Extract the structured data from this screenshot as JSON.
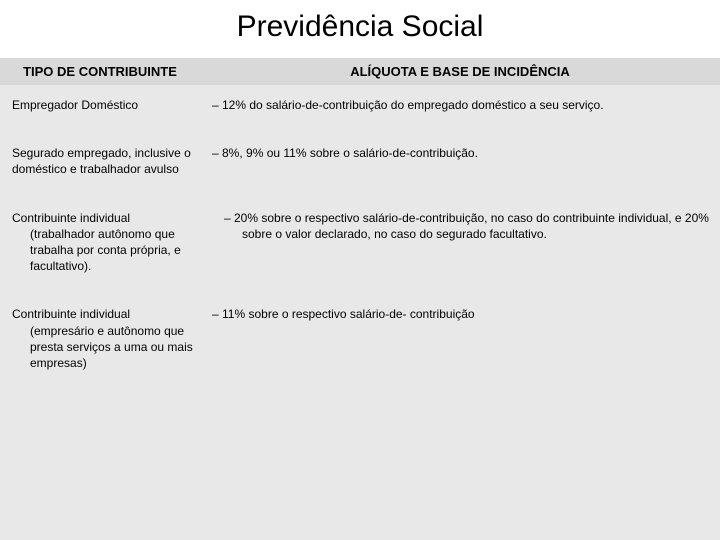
{
  "title": "Previdência Social",
  "columns": {
    "left": "TIPO DE CONTRIBUINTE",
    "right": "ALÍQUOTA E BASE DE INCIDÊNCIA"
  },
  "rows": [
    {
      "left": "Empregador Doméstico",
      "right": "– 12% do salário-de-contribuição do empregado doméstico a seu serviço."
    },
    {
      "left": "Segurado empregado, inclusive o doméstico e trabalhador avulso",
      "right": "– 8%, 9% ou 11% sobre o salário-de-contribuição."
    },
    {
      "left": "Contribuinte individual (trabalhador autônomo que trabalha por conta própria, e facultativo).",
      "right": "– 20% sobre o respectivo salário-de-contribuição, no caso do contribuinte individual, e 20% sobre o valor declarado, no caso do segurado facultativo."
    },
    {
      "left": "Contribuinte individual (empresário e autônomo que presta serviços a uma ou mais empresas)",
      "right": "– 11% sobre o respectivo salário-de- contribuição"
    }
  ],
  "colors": {
    "background": "#e8e8e8",
    "header_bg": "#d9d9d9",
    "title_bg": "#ffffff",
    "text": "#000000"
  },
  "fonts": {
    "title_size": 30,
    "header_size": 13,
    "body_size": 12
  }
}
